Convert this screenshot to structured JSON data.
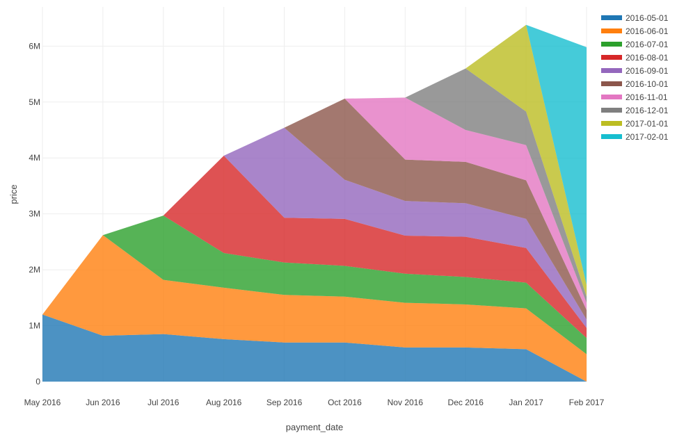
{
  "chart_data": {
    "type": "area",
    "stacked": true,
    "title": "",
    "xlabel": "payment_date",
    "ylabel": "price",
    "ylim": [
      0,
      6700000
    ],
    "x": [
      "May 2016",
      "Jun 2016",
      "Jul 2016",
      "Aug 2016",
      "Sep 2016",
      "Oct 2016",
      "Nov 2016",
      "Dec 2016",
      "Jan 2017",
      "Feb 2017"
    ],
    "y_ticks": [
      {
        "value": 0,
        "label": "0"
      },
      {
        "value": 1000000,
        "label": "1M"
      },
      {
        "value": 2000000,
        "label": "2M"
      },
      {
        "value": 3000000,
        "label": "3M"
      },
      {
        "value": 4000000,
        "label": "4M"
      },
      {
        "value": 5000000,
        "label": "5M"
      },
      {
        "value": 6000000,
        "label": "6M"
      }
    ],
    "grid": true,
    "legend_position": "right",
    "series": [
      {
        "name": "2016-05-01",
        "color": "#1f77b4",
        "values": [
          1200000,
          820000,
          850000,
          760000,
          700000,
          700000,
          610000,
          610000,
          580000,
          0
        ]
      },
      {
        "name": "2016-06-01",
        "color": "#ff7f0e",
        "values": [
          0,
          1800000,
          970000,
          920000,
          850000,
          820000,
          800000,
          770000,
          730000,
          490000
        ]
      },
      {
        "name": "2016-07-01",
        "color": "#2ca02c",
        "values": [
          0,
          0,
          1150000,
          620000,
          580000,
          550000,
          520000,
          490000,
          460000,
          290000
        ]
      },
      {
        "name": "2016-08-01",
        "color": "#d62728",
        "values": [
          0,
          0,
          0,
          1740000,
          800000,
          840000,
          680000,
          720000,
          620000,
          180000
        ]
      },
      {
        "name": "2016-09-01",
        "color": "#9467bd",
        "values": [
          0,
          0,
          0,
          0,
          1610000,
          700000,
          620000,
          600000,
          520000,
          150000
        ]
      },
      {
        "name": "2016-10-01",
        "color": "#8c564b",
        "values": [
          0,
          0,
          0,
          0,
          0,
          1450000,
          740000,
          740000,
          690000,
          170000
        ]
      },
      {
        "name": "2016-11-01",
        "color": "#e377c2",
        "values": [
          0,
          0,
          0,
          0,
          0,
          0,
          1110000,
          570000,
          630000,
          130000
        ]
      },
      {
        "name": "2016-12-01",
        "color": "#7f7f7f",
        "values": [
          0,
          0,
          0,
          0,
          0,
          0,
          0,
          1100000,
          600000,
          110000
        ]
      },
      {
        "name": "2017-01-01",
        "color": "#bcbd22",
        "values": [
          0,
          0,
          0,
          0,
          0,
          0,
          0,
          0,
          1550000,
          210000
        ]
      },
      {
        "name": "2017-02-01",
        "color": "#17becf",
        "values": [
          0,
          0,
          0,
          0,
          0,
          0,
          0,
          0,
          0,
          4250000
        ]
      }
    ]
  }
}
